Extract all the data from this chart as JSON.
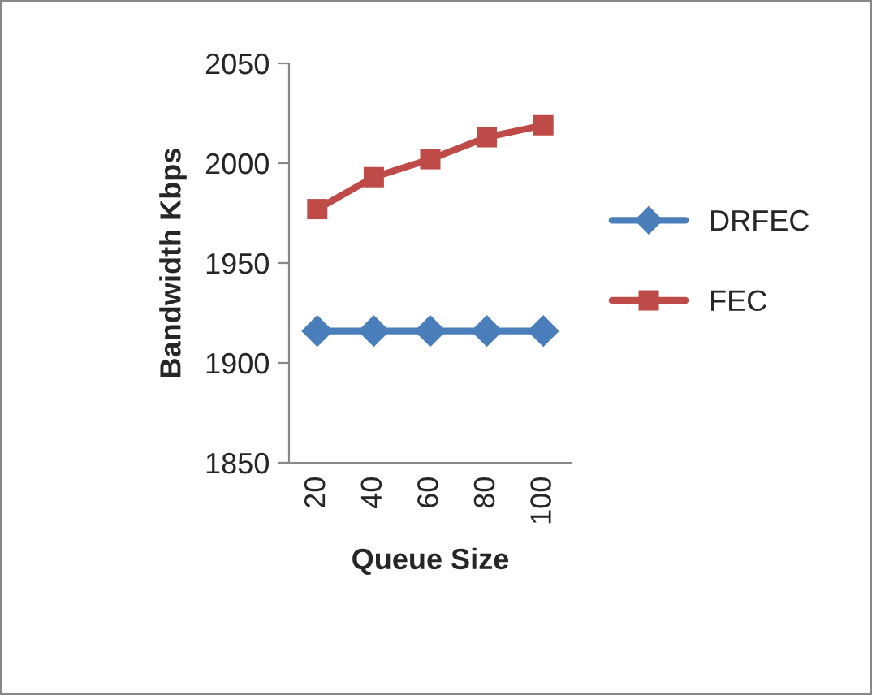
{
  "chart_data": {
    "type": "line",
    "xlabel": "Queue Size",
    "ylabel": "Bandwidth Kbps",
    "categories": [
      "20",
      "40",
      "60",
      "80",
      "100"
    ],
    "series": [
      {
        "name": "DRFEC",
        "color": "#4a7ebb",
        "marker": "diamond",
        "values": [
          1916,
          1916,
          1916,
          1916,
          1916
        ]
      },
      {
        "name": "FEC",
        "color": "#be4b48",
        "marker": "square",
        "values": [
          1977,
          1993,
          2002,
          2013,
          2019
        ]
      }
    ],
    "ylim": [
      1850,
      2050
    ],
    "yticks": [
      1850,
      1900,
      1950,
      2000,
      2050
    ],
    "grid": false,
    "legend": "right"
  }
}
